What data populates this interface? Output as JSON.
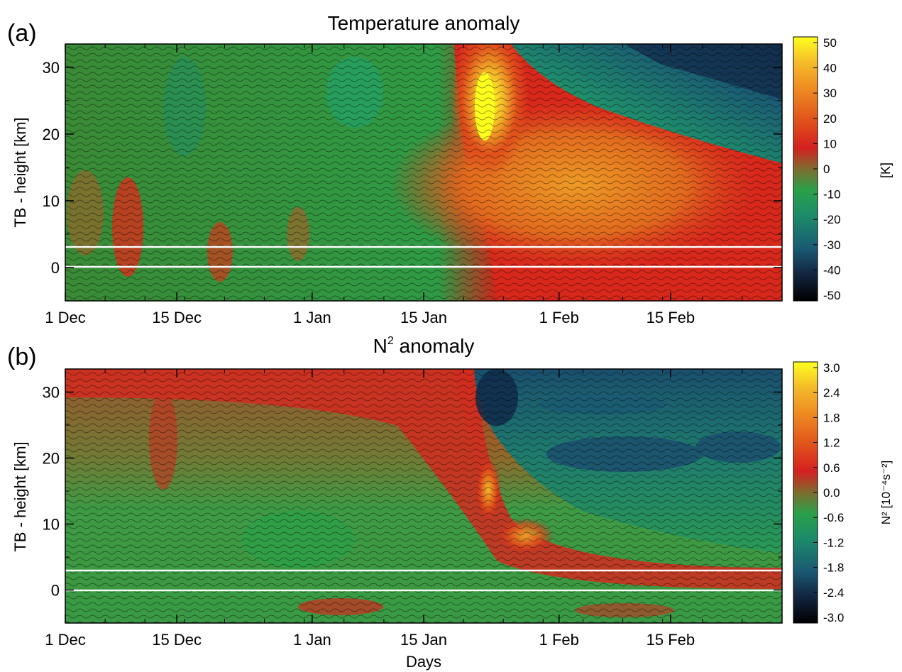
{
  "figure": {
    "x_label": "Days",
    "panels": [
      {
        "panel_label": "(a)",
        "title": "Temperature anomaly",
        "ylabel": "TB - height [km]",
        "colorbar_unit": "[K]"
      },
      {
        "panel_label": "(b)",
        "title_main": "N",
        "title_sup": "2",
        "title_rest": " anomaly",
        "ylabel": "TB - height [km]",
        "colorbar_unit": "N² [10⁻⁴s⁻²]"
      }
    ]
  },
  "chart_data": [
    {
      "type": "heatmap",
      "title": "Temperature anomaly",
      "xlabel": "",
      "ylabel": "TB - height [km]",
      "x_ticks": [
        "1 Dec",
        "15 Dec",
        "1 Jan",
        "15 Jan",
        "1 Feb",
        "15 Feb"
      ],
      "x_tick_days": [
        0,
        14,
        31,
        45,
        62,
        76
      ],
      "xlim_days": [
        0,
        90
      ],
      "y_ticks": [
        0,
        10,
        20,
        30
      ],
      "ylim": [
        -5,
        33.5
      ],
      "reference_lines_km": [
        0,
        3
      ],
      "colorbar": {
        "label": "[K]",
        "range": [
          -50,
          50
        ],
        "ticks": [
          "50",
          "40",
          "30",
          "20",
          "10",
          "0",
          "-10",
          "-20",
          "-30",
          "-40",
          "-50"
        ]
      },
      "features": [
        {
          "description_hint": "warm anomaly peak",
          "day": 48,
          "height_km": 24,
          "value": 50
        },
        {
          "description_hint": "warm region",
          "day": 63,
          "height_km": 12,
          "value": 25
        },
        {
          "description_hint": "cold upper region",
          "day": 85,
          "height_km": 31,
          "value": -35
        }
      ]
    },
    {
      "type": "heatmap",
      "title": "N² anomaly",
      "xlabel": "Days",
      "ylabel": "TB - height [km]",
      "x_ticks": [
        "1 Dec",
        "15 Dec",
        "1 Jan",
        "15 Jan",
        "1 Feb",
        "15 Feb"
      ],
      "x_tick_days": [
        0,
        14,
        31,
        45,
        62,
        76
      ],
      "xlim_days": [
        0,
        90
      ],
      "y_ticks": [
        0,
        10,
        20,
        30
      ],
      "ylim": [
        -5,
        33.5
      ],
      "reference_lines_km": [
        0,
        3
      ],
      "colorbar": {
        "label": "N² [10⁻⁴s⁻²]",
        "range": [
          -3.0,
          3.0
        ],
        "ticks": [
          "3.0",
          "2.4",
          "1.8",
          "1.2",
          "0.6",
          "0.0",
          "-0.6",
          "-1.2",
          "-1.8",
          "-2.4",
          "-3.0"
        ]
      },
      "features": [
        {
          "description_hint": "positive band",
          "day": 47,
          "height_km": 16,
          "value": 1.8
        },
        {
          "description_hint": "negative upper region",
          "day": 52,
          "height_km": 32,
          "value": -2.4
        },
        {
          "description_hint": "negative band",
          "day": 70,
          "height_km": 20,
          "value": -1.5
        }
      ]
    }
  ],
  "colors": {
    "colormap": [
      "#000000",
      "#12243f",
      "#1a5a73",
      "#1b8a6a",
      "#2aa049",
      "#7e6c2e",
      "#d42020",
      "#e0501b",
      "#ee8a21",
      "#f4b92a",
      "#ffff1e"
    ],
    "reference_line": "#ffffff"
  }
}
